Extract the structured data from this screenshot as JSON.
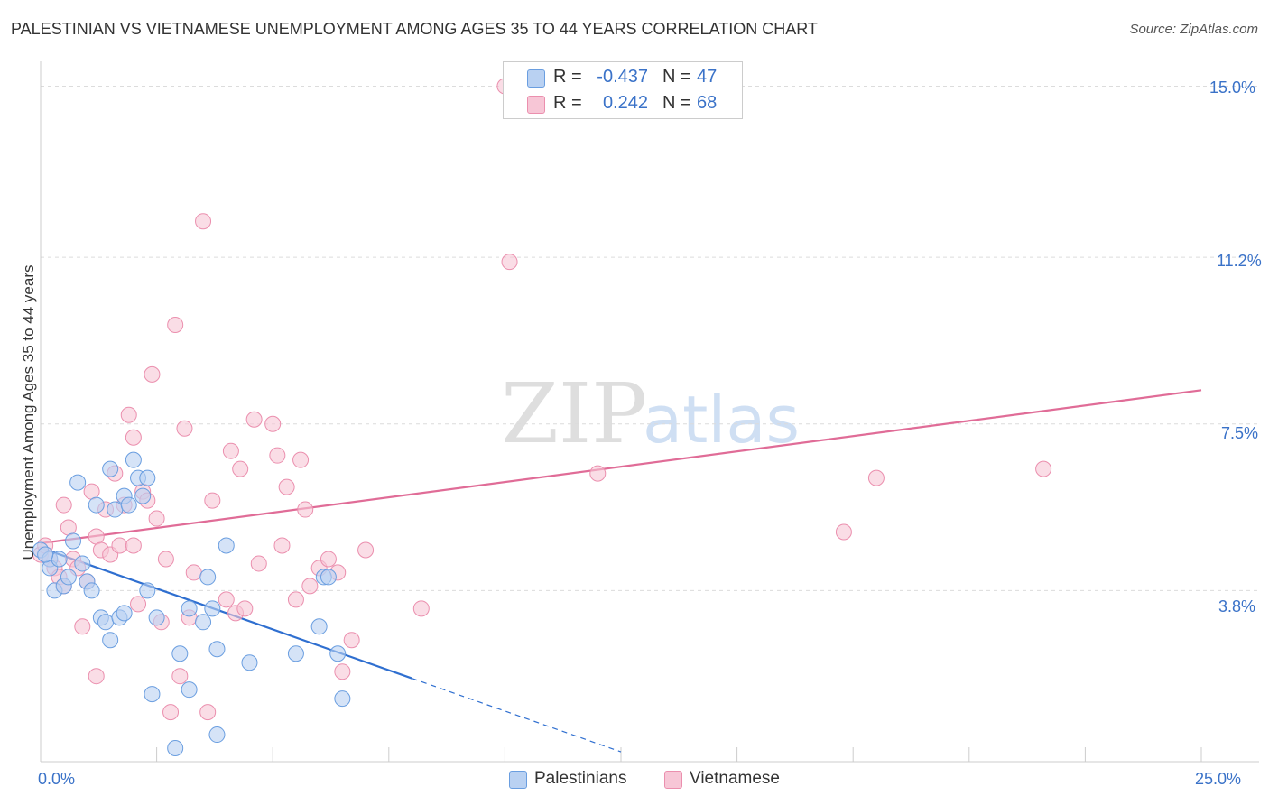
{
  "title": "PALESTINIAN VS VIETNAMESE UNEMPLOYMENT AMONG AGES 35 TO 44 YEARS CORRELATION CHART",
  "source": "Source: ZipAtlas.com",
  "watermark": {
    "zip": "ZIP",
    "atlas": "atlas"
  },
  "legend_top": {
    "rows": [
      {
        "r_label": "R =",
        "r_value": "-0.437",
        "n_label": "N =",
        "n_value": "47"
      },
      {
        "r_label": "R =",
        "r_value": "0.242",
        "n_label": "N =",
        "n_value": "68"
      }
    ]
  },
  "legend_bottom": {
    "items": [
      {
        "label": "Palestinians"
      },
      {
        "label": "Vietnamese"
      }
    ]
  },
  "y_axis_title": "Unemployment Among Ages 35 to 44 years",
  "y_ticks": [
    "15.0%",
    "11.2%",
    "7.5%",
    "3.8%"
  ],
  "x_ticks": [
    "0.0%",
    "25.0%"
  ],
  "colors": {
    "blue_fill": "#b9d1f2",
    "blue_stroke": "#6a9ee0",
    "blue_line": "#2f6fd0",
    "pink_fill": "#f7c6d6",
    "pink_stroke": "#eb8fae",
    "pink_line": "#e06c97",
    "tick_text": "#3a72c8",
    "grid": "#dcdcdc"
  },
  "chart_data": {
    "type": "scatter",
    "title": "PALESTINIAN VS VIETNAMESE UNEMPLOYMENT AMONG AGES 35 TO 44 YEARS CORRELATION CHART",
    "xlabel": "",
    "ylabel": "Unemployment Among Ages 35 to 44 years",
    "xlim": [
      0,
      25
    ],
    "ylim": [
      0,
      15.5
    ],
    "y_gridlines": [
      3.8,
      7.5,
      11.2,
      15.0
    ],
    "series": [
      {
        "name": "Palestinians",
        "r": -0.437,
        "n": 47,
        "trend": {
          "x0": 0.0,
          "y0": 4.75,
          "x1": 8.0,
          "y1": 1.85,
          "dashed_to_x": 12.5
        },
        "points": [
          [
            0.0,
            4.7
          ],
          [
            0.2,
            4.5
          ],
          [
            0.2,
            4.3
          ],
          [
            0.3,
            3.8
          ],
          [
            0.4,
            4.5
          ],
          [
            0.5,
            3.9
          ],
          [
            0.6,
            4.1
          ],
          [
            0.7,
            4.9
          ],
          [
            0.8,
            6.2
          ],
          [
            0.9,
            4.4
          ],
          [
            1.0,
            4.0
          ],
          [
            1.1,
            3.8
          ],
          [
            1.2,
            5.7
          ],
          [
            1.3,
            3.2
          ],
          [
            1.4,
            3.1
          ],
          [
            1.5,
            2.7
          ],
          [
            1.5,
            6.5
          ],
          [
            1.6,
            5.6
          ],
          [
            1.7,
            3.2
          ],
          [
            1.8,
            3.3
          ],
          [
            1.8,
            5.9
          ],
          [
            1.9,
            5.7
          ],
          [
            2.0,
            6.7
          ],
          [
            2.1,
            6.3
          ],
          [
            2.2,
            5.9
          ],
          [
            2.3,
            6.3
          ],
          [
            2.3,
            3.8
          ],
          [
            2.4,
            1.5
          ],
          [
            2.5,
            3.2
          ],
          [
            2.9,
            0.3
          ],
          [
            3.0,
            2.4
          ],
          [
            3.2,
            3.4
          ],
          [
            3.2,
            1.6
          ],
          [
            3.5,
            3.1
          ],
          [
            3.6,
            4.1
          ],
          [
            3.7,
            3.4
          ],
          [
            3.8,
            0.6
          ],
          [
            3.8,
            2.5
          ],
          [
            4.0,
            4.8
          ],
          [
            4.5,
            2.2
          ],
          [
            5.5,
            2.4
          ],
          [
            6.0,
            3.0
          ],
          [
            6.1,
            4.1
          ],
          [
            6.2,
            4.1
          ],
          [
            6.4,
            2.4
          ],
          [
            6.5,
            1.4
          ],
          [
            0.1,
            4.6
          ]
        ]
      },
      {
        "name": "Vietnamese",
        "r": 0.242,
        "n": 68,
        "trend": {
          "x0": 0.0,
          "y0": 4.85,
          "x1": 25.0,
          "y1": 8.25
        },
        "points": [
          [
            0.0,
            4.6
          ],
          [
            0.1,
            4.8
          ],
          [
            0.2,
            4.5
          ],
          [
            0.3,
            4.3
          ],
          [
            0.4,
            4.1
          ],
          [
            0.5,
            3.9
          ],
          [
            0.5,
            5.7
          ],
          [
            0.6,
            5.2
          ],
          [
            0.7,
            4.5
          ],
          [
            0.8,
            4.3
          ],
          [
            0.9,
            3.0
          ],
          [
            1.0,
            4.0
          ],
          [
            1.1,
            6.0
          ],
          [
            1.2,
            5.0
          ],
          [
            1.3,
            4.7
          ],
          [
            1.4,
            5.6
          ],
          [
            1.5,
            4.6
          ],
          [
            1.6,
            6.4
          ],
          [
            1.7,
            4.8
          ],
          [
            1.8,
            5.7
          ],
          [
            1.9,
            7.7
          ],
          [
            2.0,
            7.2
          ],
          [
            2.0,
            4.8
          ],
          [
            2.1,
            3.5
          ],
          [
            2.2,
            6.0
          ],
          [
            2.3,
            5.8
          ],
          [
            2.4,
            8.6
          ],
          [
            2.5,
            5.4
          ],
          [
            2.6,
            3.1
          ],
          [
            2.7,
            4.5
          ],
          [
            2.8,
            1.1
          ],
          [
            2.9,
            9.7
          ],
          [
            3.0,
            1.9
          ],
          [
            3.1,
            7.4
          ],
          [
            3.2,
            3.2
          ],
          [
            3.3,
            4.2
          ],
          [
            3.5,
            12.0
          ],
          [
            3.6,
            1.1
          ],
          [
            3.7,
            5.8
          ],
          [
            4.0,
            3.6
          ],
          [
            4.1,
            6.9
          ],
          [
            4.2,
            3.3
          ],
          [
            4.3,
            6.5
          ],
          [
            4.4,
            3.4
          ],
          [
            4.6,
            7.6
          ],
          [
            4.7,
            4.4
          ],
          [
            5.0,
            7.5
          ],
          [
            5.1,
            6.8
          ],
          [
            5.2,
            4.8
          ],
          [
            5.3,
            6.1
          ],
          [
            5.5,
            3.6
          ],
          [
            5.6,
            6.7
          ],
          [
            5.7,
            5.6
          ],
          [
            5.8,
            3.9
          ],
          [
            6.0,
            4.3
          ],
          [
            6.2,
            4.5
          ],
          [
            6.4,
            4.2
          ],
          [
            6.5,
            2.0
          ],
          [
            6.7,
            2.7
          ],
          [
            7.0,
            4.7
          ],
          [
            8.2,
            3.4
          ],
          [
            10.0,
            15.0
          ],
          [
            10.1,
            11.1
          ],
          [
            12.0,
            6.4
          ],
          [
            17.3,
            5.1
          ],
          [
            18.0,
            6.3
          ],
          [
            21.6,
            6.5
          ],
          [
            1.2,
            1.9
          ]
        ]
      }
    ]
  }
}
